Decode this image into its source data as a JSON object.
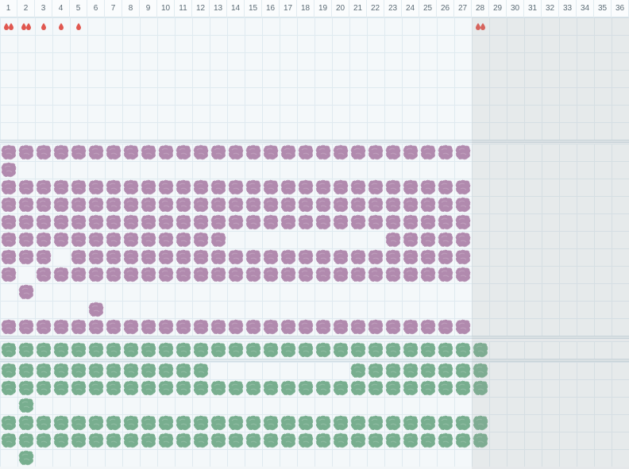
{
  "calendar": {
    "days": [
      "1",
      "2",
      "3",
      "4",
      "5",
      "6",
      "7",
      "8",
      "9",
      "10",
      "11",
      "12",
      "13",
      "14",
      "15",
      "16",
      "17",
      "18",
      "19",
      "20",
      "21",
      "22",
      "23",
      "24",
      "25",
      "26",
      "27",
      "28",
      "29",
      "30",
      "31",
      "32",
      "33",
      "34",
      "35",
      "36"
    ],
    "today_index": 28,
    "colors": {
      "drop": "#e0574f",
      "purple_blob": "#b18aae",
      "green_blob": "#78ae8f"
    }
  },
  "tracks": [
    {
      "name": "drops",
      "icon": "blood-drop-icon",
      "color": "#e0574f",
      "rows": [
        {
          "cells": {
            "1": 2,
            "2": 2,
            "3": 1,
            "4": 1,
            "5": 1,
            "28": 2
          }
        },
        {
          "cells": {}
        },
        {
          "cells": {}
        },
        {
          "cells": {}
        },
        {
          "cells": {}
        },
        {
          "cells": {}
        },
        {
          "cells": {}
        }
      ]
    },
    {
      "name": "purple",
      "icon": "purple-blob-icon",
      "color": "#b18aae",
      "rows": [
        {
          "ranges": [
            [
              1,
              27
            ]
          ]
        },
        {
          "ranges": [
            [
              1,
              1
            ]
          ]
        },
        {
          "ranges": [
            [
              1,
              27
            ]
          ]
        },
        {
          "ranges": [
            [
              1,
              27
            ]
          ]
        },
        {
          "ranges": [
            [
              1,
              27
            ]
          ]
        },
        {
          "ranges": [
            [
              1,
              13
            ],
            [
              23,
              27
            ]
          ]
        },
        {
          "ranges": [
            [
              1,
              3
            ],
            [
              5,
              27
            ]
          ]
        },
        {
          "ranges": [
            [
              1,
              1
            ],
            [
              3,
              27
            ]
          ]
        },
        {
          "ranges": [
            [
              2,
              2
            ]
          ]
        },
        {
          "ranges": [
            [
              6,
              6
            ]
          ]
        },
        {
          "ranges": [
            [
              1,
              27
            ]
          ]
        }
      ]
    },
    {
      "name": "green-a",
      "icon": "green-blob-icon",
      "color": "#78ae8f",
      "rows": [
        {
          "ranges": [
            [
              1,
              28
            ]
          ]
        }
      ]
    },
    {
      "name": "green-b",
      "icon": "green-blob-icon",
      "color": "#78ae8f",
      "rows": [
        {
          "ranges": [
            [
              1,
              12
            ],
            [
              21,
              28
            ]
          ]
        },
        {
          "ranges": [
            [
              1,
              28
            ]
          ]
        },
        {
          "ranges": [
            [
              2,
              2
            ]
          ]
        },
        {
          "ranges": [
            [
              1,
              28
            ]
          ]
        },
        {
          "ranges": [
            [
              1,
              28
            ]
          ]
        },
        {
          "ranges": [
            [
              2,
              2
            ]
          ]
        }
      ]
    }
  ]
}
